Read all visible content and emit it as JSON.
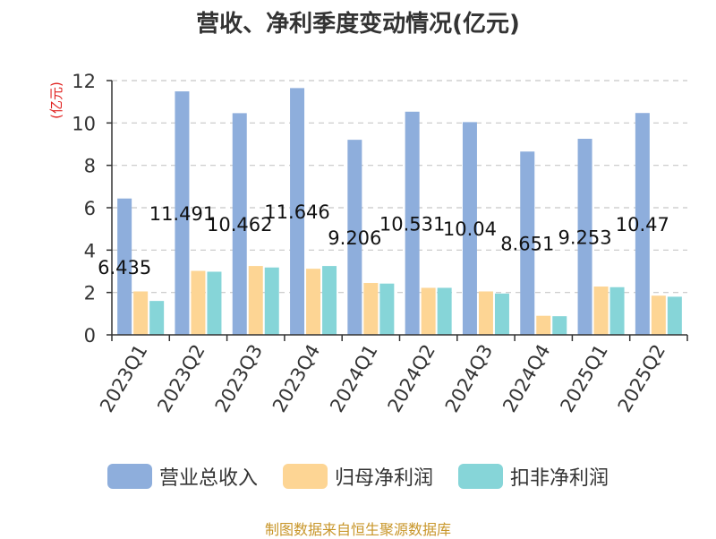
{
  "chart_data": {
    "type": "bar",
    "title": "营收、净利季度变动情况(亿元)",
    "ylabel": "(亿元)",
    "xlabel": "",
    "ylim": [
      0,
      12
    ],
    "yticks": [
      0,
      2,
      4,
      6,
      8,
      10,
      12
    ],
    "grid": true,
    "legend_position": "bottom",
    "categories": [
      "2023Q1",
      "2023Q2",
      "2023Q3",
      "2023Q4",
      "2024Q1",
      "2024Q2",
      "2024Q3",
      "2024Q4",
      "2025Q1",
      "2025Q2"
    ],
    "series": [
      {
        "name": "营业总收入",
        "color": "#8eaedc",
        "values": [
          6.435,
          11.491,
          10.462,
          11.646,
          9.206,
          10.531,
          10.04,
          8.651,
          9.253,
          10.47
        ],
        "labels": [
          "6.435",
          "11.491",
          "10.462",
          "11.646",
          "9.206",
          "10.531",
          "10.04",
          "8.651",
          "9.253",
          "10.47"
        ]
      },
      {
        "name": "归母净利润",
        "color": "#fdd594",
        "values": [
          2.05,
          3.02,
          3.25,
          3.12,
          2.45,
          2.22,
          2.05,
          0.9,
          2.28,
          1.85
        ]
      },
      {
        "name": "扣非净利润",
        "color": "#86d5d8",
        "values": [
          1.6,
          2.98,
          3.18,
          3.25,
          2.42,
          2.22,
          1.95,
          0.88,
          2.25,
          1.8
        ]
      }
    ],
    "source": "制图数据来自恒生聚源数据库"
  }
}
